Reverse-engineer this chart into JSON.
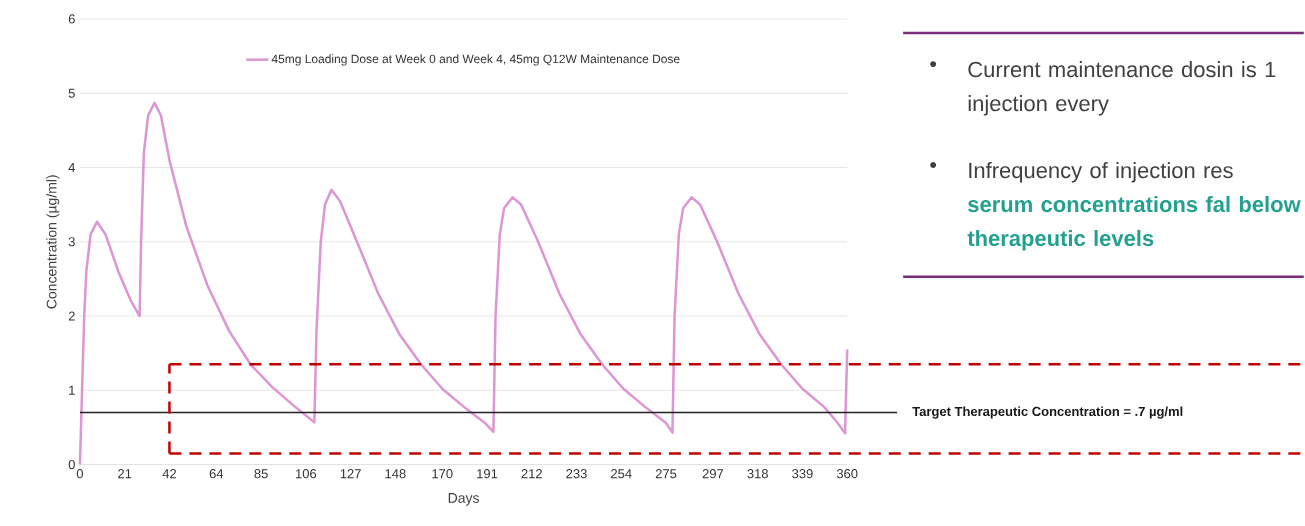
{
  "chart_data": {
    "type": "line",
    "xlabel": "Days",
    "ylabel": "Concentration (µg/ml)",
    "x": [
      0,
      1,
      2,
      3,
      5,
      8,
      12,
      18,
      24,
      28,
      28.7,
      30,
      32,
      35,
      38,
      42,
      50,
      60,
      70,
      80,
      90,
      100,
      110,
      111,
      113,
      115,
      118,
      122,
      130,
      140,
      150,
      160,
      170,
      180,
      190,
      194,
      195,
      197,
      199,
      203,
      207,
      215,
      225,
      235,
      245,
      255,
      265,
      275,
      278,
      279,
      281,
      283,
      287,
      291,
      299,
      309,
      319,
      329,
      339,
      349,
      355,
      359,
      360
    ],
    "series": [
      {
        "name": "45mg Loading Dose at Week 0 and Week 4, 45mg Q12W Maintenance Dose",
        "color": "#dd95d3",
        "values": [
          0,
          1.0,
          2.0,
          2.6,
          3.1,
          3.27,
          3.1,
          2.6,
          2.2,
          2.0,
          3.0,
          4.2,
          4.7,
          4.87,
          4.7,
          4.1,
          3.2,
          2.4,
          1.8,
          1.35,
          1.05,
          0.8,
          0.57,
          1.8,
          3.0,
          3.5,
          3.7,
          3.55,
          3.0,
          2.3,
          1.75,
          1.35,
          1.02,
          0.78,
          0.56,
          0.44,
          2.0,
          3.1,
          3.45,
          3.6,
          3.5,
          3.0,
          2.3,
          1.75,
          1.35,
          1.02,
          0.78,
          0.56,
          0.43,
          2.0,
          3.1,
          3.45,
          3.6,
          3.5,
          3.0,
          2.3,
          1.75,
          1.35,
          1.02,
          0.78,
          0.58,
          0.42,
          1.55
        ]
      }
    ],
    "xlim": [
      0,
      360
    ],
    "ylim": [
      0,
      6
    ],
    "xticks": [
      0,
      21,
      42,
      64,
      85,
      106,
      127,
      148,
      170,
      191,
      212,
      233,
      254,
      275,
      297,
      318,
      339,
      360
    ],
    "yticks": [
      0,
      1,
      2,
      3,
      4,
      5,
      6
    ],
    "grid": "y",
    "legend": "top",
    "ref_lines": [
      {
        "axis": "y",
        "value": 0.7,
        "label": "Target Therapeutic Concentration = .7 µg/ml",
        "color": "#222222"
      },
      {
        "axis": "y",
        "value": 1.35,
        "color": "#c00000",
        "line_style": "dashed"
      },
      {
        "axis": "y",
        "value": 0.15,
        "color": "#c00000",
        "line_style": "dashed"
      },
      {
        "axis": "x",
        "value": 42,
        "color": "#c00000",
        "line_style": "dashed"
      }
    ],
    "annotations": [
      "•",
      "Current maintenance dosin is 1 injection every",
      "•",
      "Infrequency of injection res",
      "serum concentrations fal below therapeutic levels"
    ]
  }
}
